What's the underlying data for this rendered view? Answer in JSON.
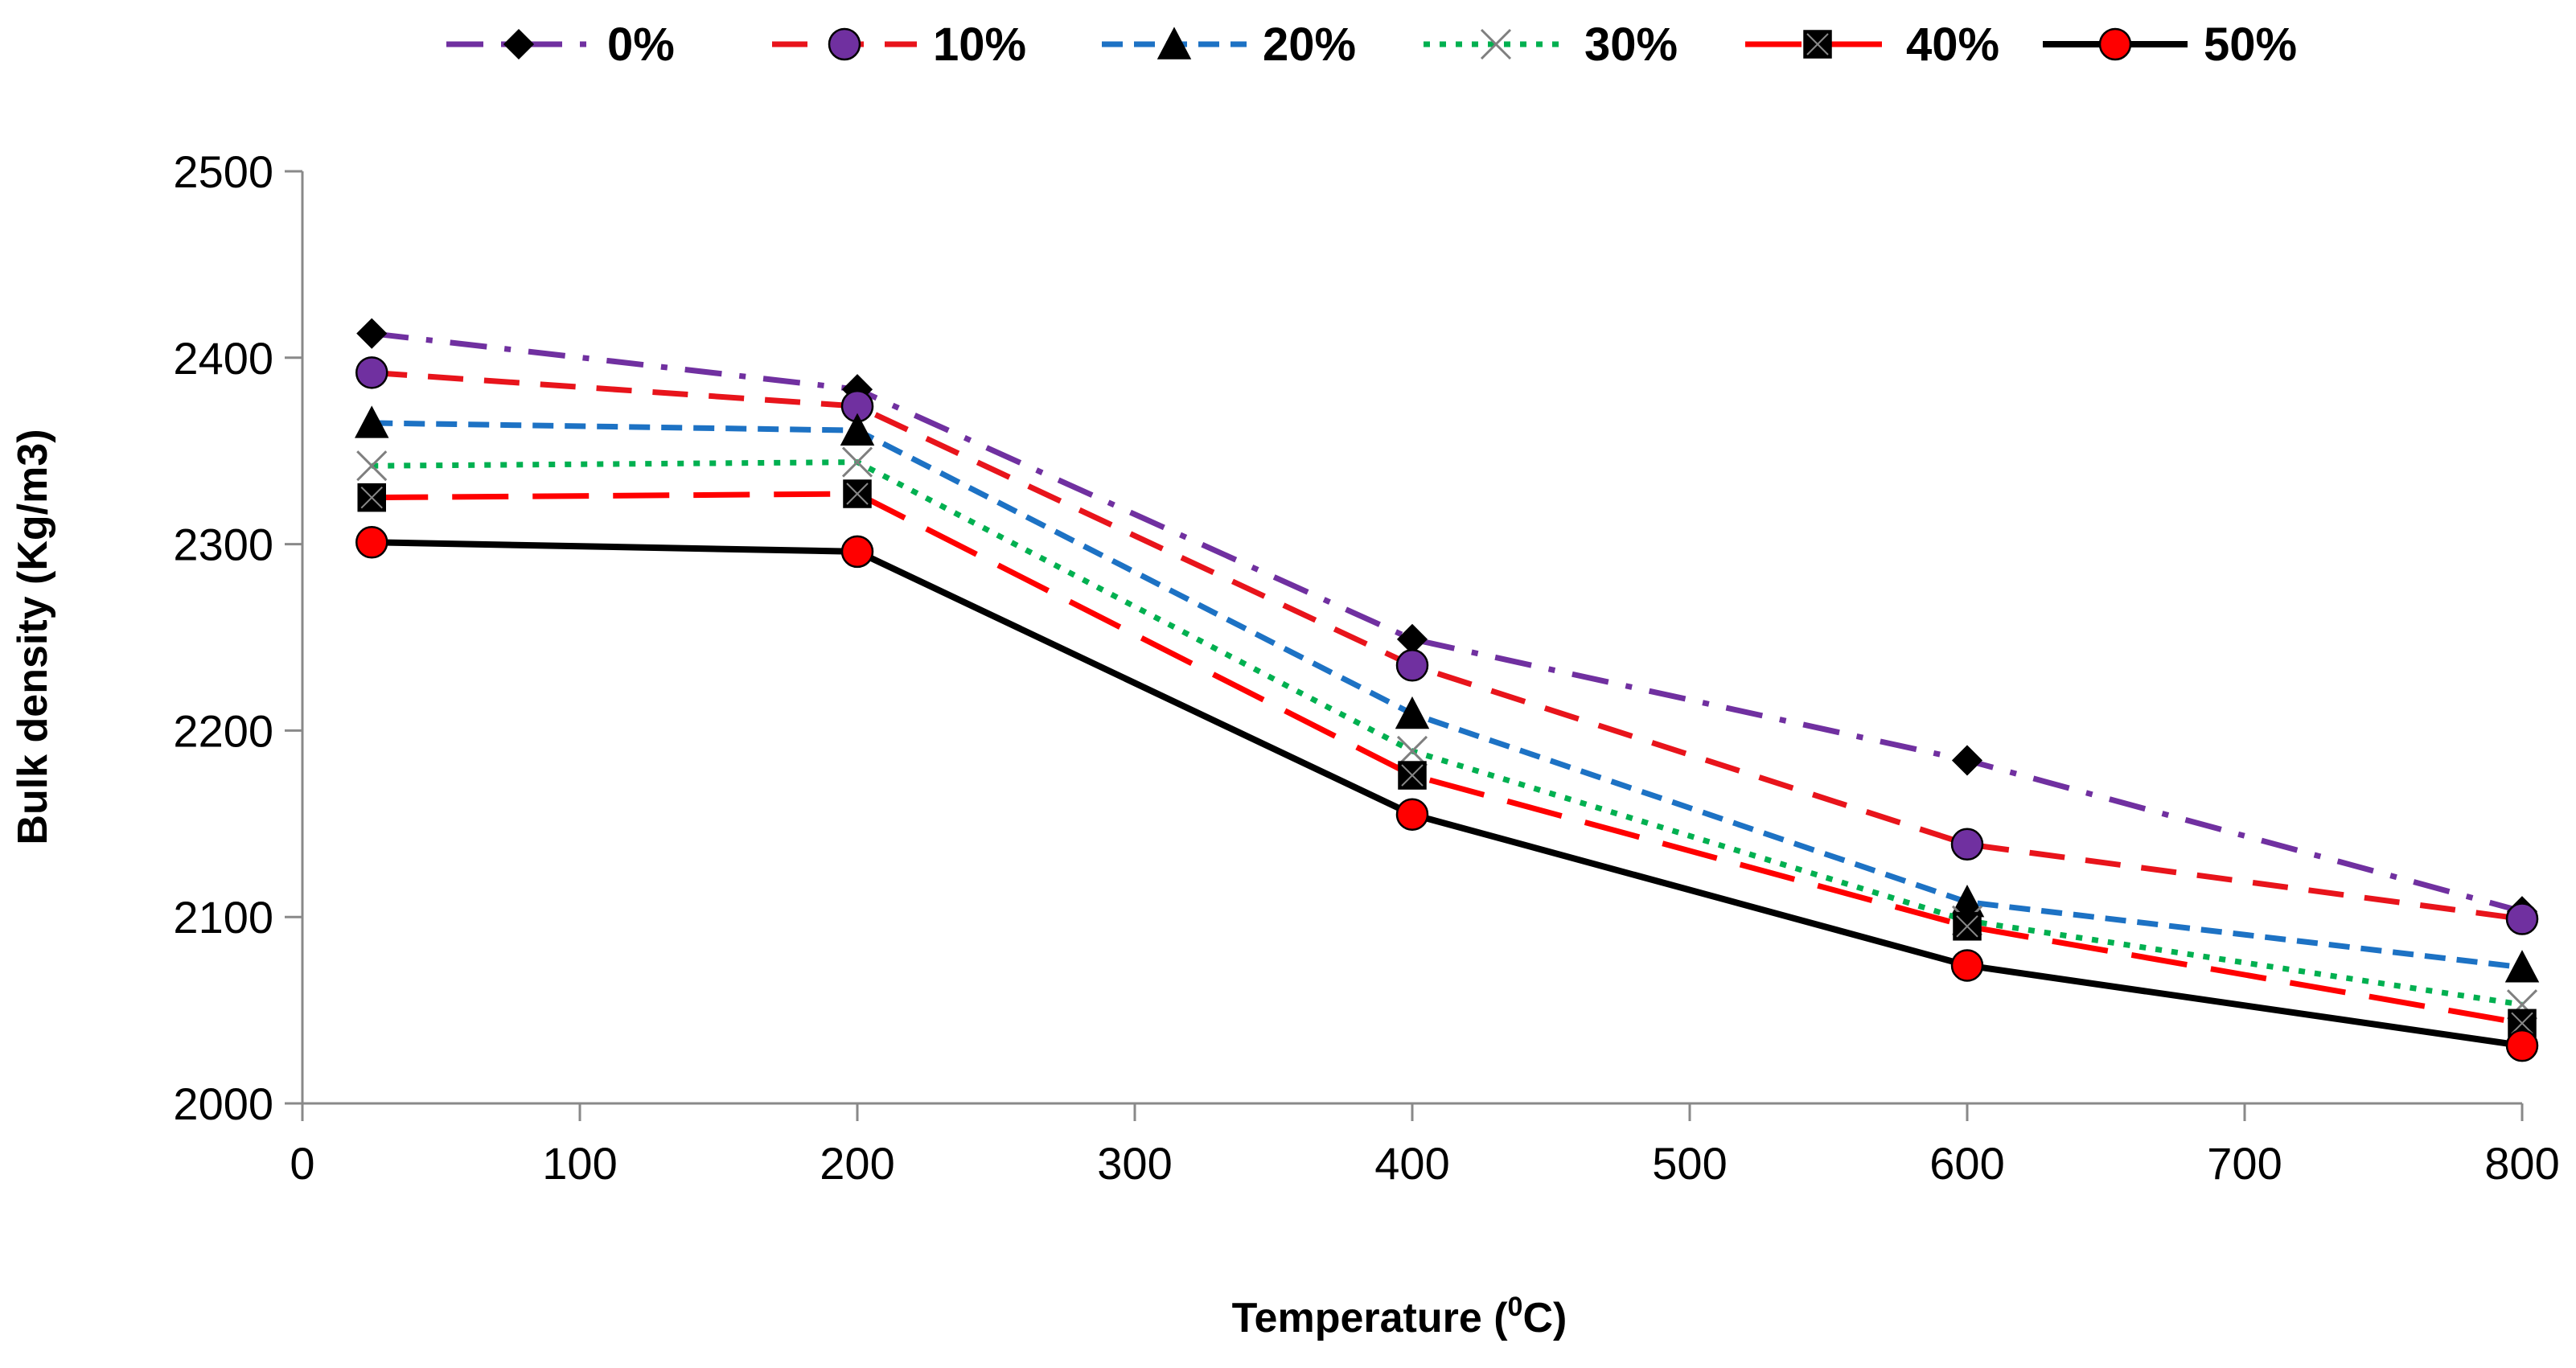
{
  "chart_data": {
    "type": "line",
    "title": "",
    "xlabel": "Temperature (",
    "xlabel_sup": "0",
    "xlabel_suffix": "C)",
    "ylabel": "Bulk density (Kg/m3)",
    "xlim": [
      0,
      800
    ],
    "ylim": [
      2000,
      2500
    ],
    "xticks": [
      0,
      100,
      200,
      300,
      400,
      500,
      600,
      700,
      800
    ],
    "yticks": [
      2000,
      2100,
      2200,
      2300,
      2400,
      2500
    ],
    "grid": false,
    "legend_position": "top-center",
    "x": [
      25,
      200,
      400,
      600,
      800
    ],
    "series": [
      {
        "name": "0%",
        "values": [
          2413,
          2383,
          2249,
          2184,
          2103
        ],
        "color": "#7030A0",
        "line_style": "dash-dot",
        "marker": "diamond",
        "marker_color": "#000000"
      },
      {
        "name": "10%",
        "values": [
          2392,
          2374,
          2235,
          2139,
          2099
        ],
        "color": "#E8141B",
        "line_style": "dash",
        "marker": "circle",
        "marker_color": "#7030A0"
      },
      {
        "name": "20%",
        "values": [
          2365,
          2361,
          2209,
          2108,
          2073
        ],
        "color": "#1D72C4",
        "line_style": "short-dash",
        "marker": "triangle",
        "marker_color": "#000000"
      },
      {
        "name": "30%",
        "values": [
          2342,
          2344,
          2189,
          2098,
          2053
        ],
        "color": "#00B050",
        "line_style": "dot",
        "marker": "x",
        "marker_color": "#7F7F7F"
      },
      {
        "name": "40%",
        "values": [
          2325,
          2327,
          2176,
          2095,
          2043
        ],
        "color": "#FF0000",
        "line_style": "long-dash",
        "marker": "square",
        "marker_color": "#000000"
      },
      {
        "name": "50%",
        "values": [
          2301,
          2296,
          2155,
          2074,
          2031
        ],
        "color": "#000000",
        "line_style": "solid",
        "marker": "circle",
        "marker_color": "#FF0000"
      }
    ]
  }
}
